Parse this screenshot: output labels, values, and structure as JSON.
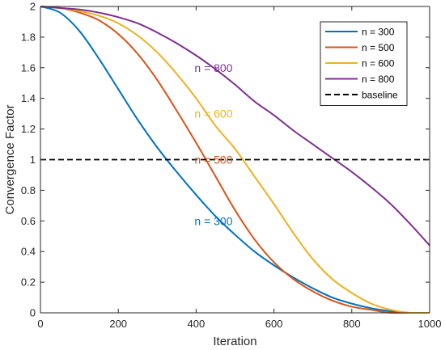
{
  "chart_data": {
    "type": "line",
    "title": "",
    "xlabel": "Iteration",
    "ylabel": "Convergence Factor",
    "xlim": [
      0,
      1000
    ],
    "ylim": [
      0,
      2
    ],
    "xticks": [
      0,
      200,
      400,
      600,
      800,
      1000
    ],
    "yticks": [
      0,
      0.2,
      0.4,
      0.6,
      0.8,
      1,
      1.2,
      1.4,
      1.6,
      1.8,
      2
    ],
    "xtick_labels": [
      "0",
      "200",
      "400",
      "600",
      "800",
      "1000"
    ],
    "ytick_labels": [
      "0",
      "0.2",
      "0.4",
      "0.6",
      "0.8",
      "1",
      "1.2",
      "1.4",
      "1.6",
      "1.8",
      "2"
    ],
    "grid": false,
    "legend_position": "top-right",
    "series": [
      {
        "name": "n = 300",
        "color": "#0072BD",
        "x": [
          0,
          50,
          100,
          150,
          200,
          250,
          300,
          350,
          400,
          450,
          500,
          550,
          600,
          650,
          700,
          750,
          800,
          850,
          900,
          950,
          1000
        ],
        "y": [
          2.0,
          1.96,
          1.84,
          1.66,
          1.46,
          1.26,
          1.08,
          0.92,
          0.77,
          0.63,
          0.51,
          0.4,
          0.31,
          0.23,
          0.16,
          0.1,
          0.06,
          0.03,
          0.01,
          0.0,
          0.0
        ]
      },
      {
        "name": "n = 500",
        "color": "#D95319",
        "x": [
          0,
          50,
          100,
          150,
          200,
          250,
          300,
          350,
          400,
          450,
          500,
          550,
          600,
          650,
          700,
          750,
          800,
          850,
          900,
          950,
          1000
        ],
        "y": [
          2.0,
          1.99,
          1.96,
          1.91,
          1.82,
          1.69,
          1.52,
          1.32,
          1.11,
          0.89,
          0.67,
          0.48,
          0.33,
          0.22,
          0.14,
          0.08,
          0.04,
          0.02,
          0.0,
          0.0,
          0.0
        ]
      },
      {
        "name": "n = 600",
        "color": "#EDB120",
        "x": [
          0,
          50,
          100,
          150,
          200,
          250,
          300,
          350,
          400,
          450,
          500,
          550,
          600,
          650,
          700,
          750,
          800,
          850,
          900,
          950,
          1000
        ],
        "y": [
          2.0,
          1.99,
          1.97,
          1.94,
          1.89,
          1.81,
          1.7,
          1.56,
          1.4,
          1.22,
          1.07,
          0.89,
          0.71,
          0.52,
          0.35,
          0.22,
          0.13,
          0.06,
          0.02,
          0.0,
          0.0
        ]
      },
      {
        "name": "n = 800",
        "color": "#7E2F8E",
        "x": [
          0,
          50,
          100,
          150,
          200,
          250,
          300,
          350,
          400,
          450,
          500,
          550,
          600,
          650,
          700,
          750,
          800,
          850,
          900,
          950,
          1000
        ],
        "y": [
          2.0,
          1.99,
          1.98,
          1.96,
          1.93,
          1.89,
          1.83,
          1.76,
          1.68,
          1.59,
          1.49,
          1.38,
          1.29,
          1.19,
          1.1,
          1.01,
          0.92,
          0.82,
          0.71,
          0.58,
          0.44
        ]
      },
      {
        "name": "baseline",
        "color": "#000000",
        "dashed": true,
        "x": [
          0,
          1000
        ],
        "y": [
          1,
          1
        ]
      }
    ],
    "annotations": [
      {
        "text": "n = 800",
        "x": 400,
        "y": 1.6,
        "color": "#7E2F8E"
      },
      {
        "text": "n = 600",
        "x": 400,
        "y": 1.3,
        "color": "#EDB120"
      },
      {
        "text": "n = 500",
        "x": 400,
        "y": 1.0,
        "color": "#D95319"
      },
      {
        "text": "n = 300",
        "x": 400,
        "y": 0.6,
        "color": "#0072BD"
      }
    ]
  }
}
